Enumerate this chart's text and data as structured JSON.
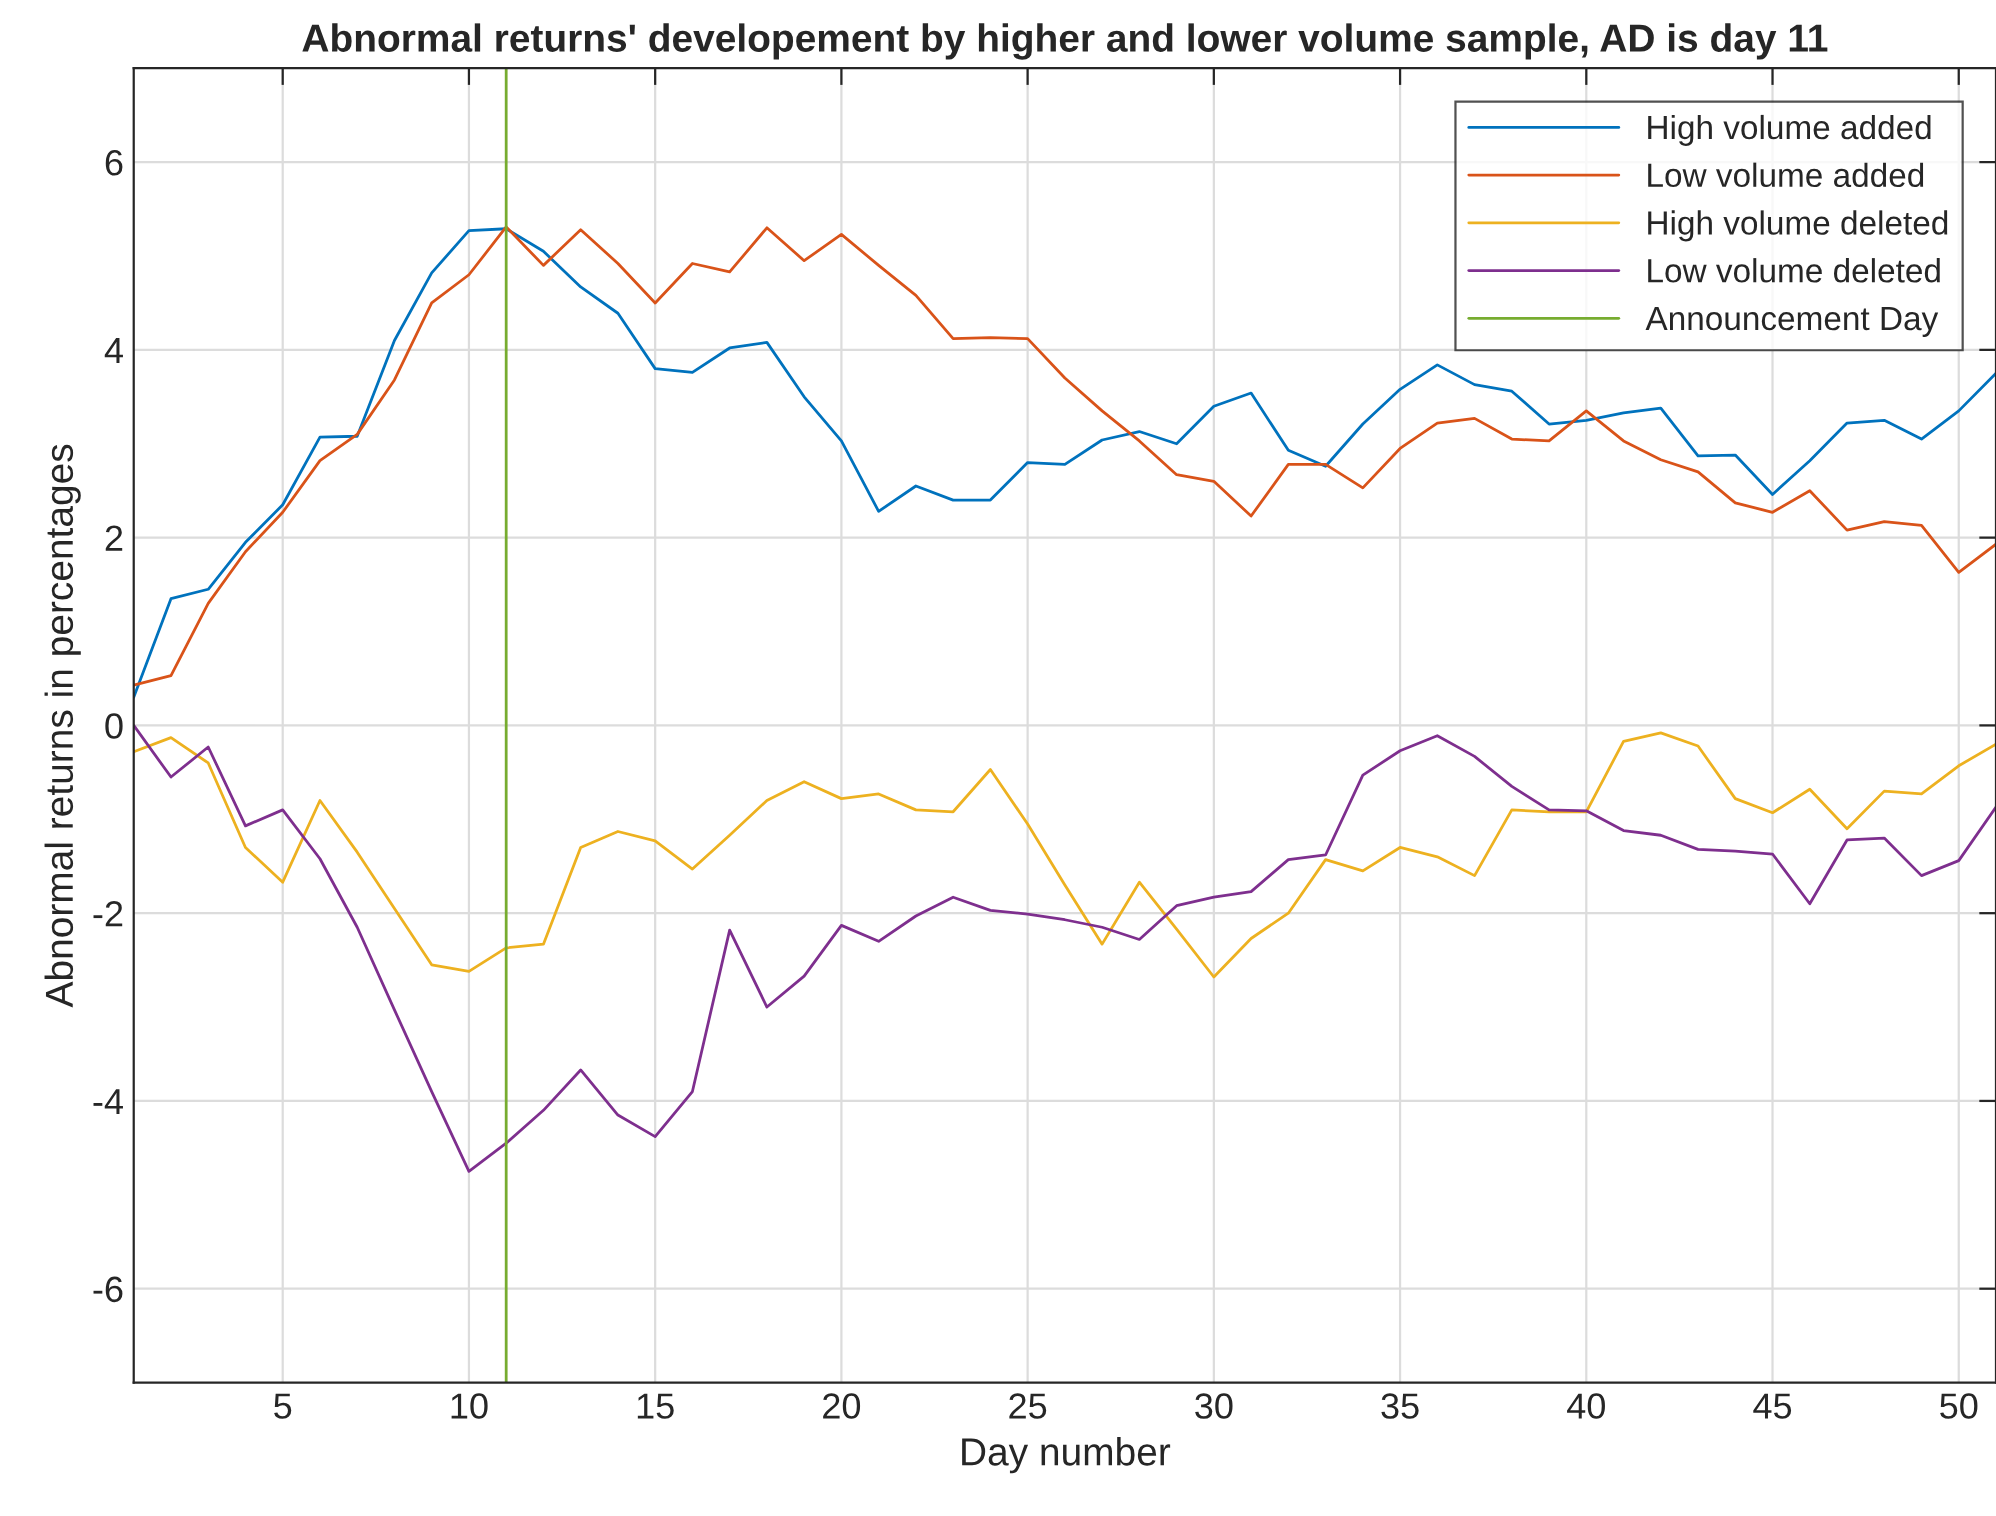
{
  "chart_data": {
    "type": "line",
    "title": "Abnormal returns' developement by higher and lower volume sample, AD is day 11",
    "xlabel": "Day number",
    "ylabel": "Abnormal returns in percentages",
    "x": [
      1,
      2,
      3,
      4,
      5,
      6,
      7,
      8,
      9,
      10,
      11,
      12,
      13,
      14,
      15,
      16,
      17,
      18,
      19,
      20,
      21,
      22,
      23,
      24,
      25,
      26,
      27,
      28,
      29,
      30,
      31,
      32,
      33,
      34,
      35,
      36,
      37,
      38,
      39,
      40,
      41,
      42,
      43,
      44,
      45,
      46,
      47,
      48,
      49,
      50,
      51
    ],
    "series": [
      {
        "name": "High volume added",
        "color": "#0072bd",
        "values": [
          0.3,
          1.35,
          1.45,
          1.95,
          2.35,
          3.07,
          3.08,
          4.1,
          4.82,
          5.27,
          5.29,
          5.05,
          4.67,
          4.39,
          3.8,
          3.76,
          4.02,
          4.08,
          3.5,
          3.03,
          2.28,
          2.55,
          2.4,
          2.4,
          2.8,
          2.78,
          3.04,
          3.13,
          3.0,
          3.4,
          3.54,
          2.93,
          2.76,
          3.21,
          3.58,
          3.84,
          3.63,
          3.56,
          3.21,
          3.25,
          3.33,
          3.38,
          2.87,
          2.88,
          2.46,
          2.82,
          3.22,
          3.25,
          3.05,
          3.35,
          3.75
        ]
      },
      {
        "name": "Low volume added",
        "color": "#d95319",
        "values": [
          0.43,
          0.53,
          1.3,
          1.85,
          2.27,
          2.82,
          3.1,
          3.68,
          4.5,
          4.8,
          5.31,
          4.9,
          5.28,
          4.92,
          4.5,
          4.92,
          4.83,
          5.3,
          4.95,
          5.23,
          4.9,
          4.58,
          4.12,
          4.13,
          4.12,
          3.7,
          3.35,
          3.03,
          2.67,
          2.6,
          2.23,
          2.78,
          2.78,
          2.53,
          2.95,
          3.22,
          3.27,
          3.05,
          3.03,
          3.35,
          3.03,
          2.83,
          2.7,
          2.37,
          2.27,
          2.5,
          2.08,
          2.17,
          2.13,
          1.63,
          1.93
        ]
      },
      {
        "name": "High volume deleted",
        "color": "#edb120",
        "values": [
          -0.28,
          -0.13,
          -0.4,
          -1.3,
          -1.67,
          -0.8,
          -1.35,
          -1.95,
          -2.55,
          -2.62,
          -2.37,
          -2.33,
          -1.3,
          -1.13,
          -1.23,
          -1.53,
          -1.17,
          -0.8,
          -0.6,
          -0.78,
          -0.73,
          -0.9,
          -0.92,
          -0.47,
          -1.05,
          -1.7,
          -2.33,
          -1.67,
          -2.17,
          -2.68,
          -2.27,
          -2.0,
          -1.43,
          -1.55,
          -1.3,
          -1.4,
          -1.6,
          -0.9,
          -0.92,
          -0.92,
          -0.17,
          -0.08,
          -0.22,
          -0.78,
          -0.93,
          -0.68,
          -1.1,
          -0.7,
          -0.73,
          -0.43,
          -0.2
        ]
      },
      {
        "name": "Low volume deleted",
        "color": "#7e2f8e",
        "values": [
          0.0,
          -0.55,
          -0.23,
          -1.07,
          -0.9,
          -1.42,
          -2.15,
          -3.03,
          -3.9,
          -4.75,
          -4.45,
          -4.1,
          -3.67,
          -4.15,
          -4.38,
          -3.9,
          -2.18,
          -3.0,
          -2.67,
          -2.13,
          -2.3,
          -2.03,
          -1.83,
          -1.97,
          -2.01,
          -2.07,
          -2.15,
          -2.28,
          -1.92,
          -1.83,
          -1.77,
          -1.43,
          -1.38,
          -0.53,
          -0.27,
          -0.11,
          -0.33,
          -0.65,
          -0.9,
          -0.91,
          -1.12,
          -1.17,
          -1.32,
          -1.34,
          -1.37,
          -1.9,
          -1.22,
          -1.2,
          -1.6,
          -1.44,
          -0.87
        ]
      },
      {
        "name": "Announcement Day",
        "color": "#77ac30",
        "x": [
          11,
          11
        ],
        "values": [
          -7,
          7
        ]
      }
    ],
    "xlim": [
      1,
      51
    ],
    "xticks": [
      5,
      10,
      15,
      20,
      25,
      30,
      35,
      40,
      45,
      50
    ],
    "ylim": [
      -7,
      7
    ],
    "yticks": [
      -6,
      -4,
      -2,
      0,
      2,
      4,
      6
    ],
    "grid": true,
    "legend": "top right"
  }
}
